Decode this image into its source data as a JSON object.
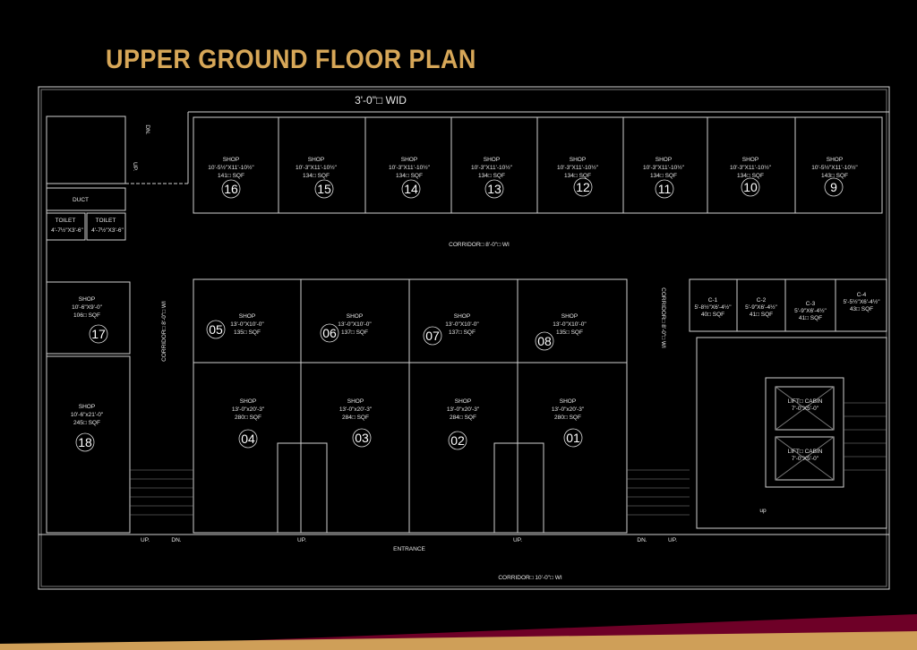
{
  "title": "UPPER GROUND FLOOR PLAN",
  "colors": {
    "background": "#000000",
    "title": "#d7a758",
    "stripe_maroon": "#6e0027",
    "stripe_gold": "#cf9f58",
    "lines": "#cfcfcf"
  },
  "labels": {
    "top_passage": "3'-0\"□ WID",
    "corridor_top": "CORRIDOR□ 8'-0\"□ WI",
    "corridor_left": "CORRIDOR□ 8'-0\"□ WI",
    "corridor_right": "CORRIDOR□ 8'-0\"□ WI",
    "corridor_bottom": "CORRIDOR□ 10'-0\"□ WI",
    "entrance": "ENTRANCE",
    "duct": "DUCT",
    "stair_dn": "DN.",
    "stair_up": "UP.",
    "lift_up": "up",
    "bottom_marks": [
      "UP.",
      "DN.",
      "UP.",
      "UP.",
      "DN.",
      "UP."
    ]
  },
  "toilets": [
    {
      "name": "TOILET",
      "size": "4'-7½\"X3'-6\""
    },
    {
      "name": "TOILET",
      "size": "4'-7½\"X3'-6\""
    }
  ],
  "shops": [
    {
      "no": "16",
      "type": "SHOP",
      "size": "10'-5½\"X11'-10½\"",
      "area": "141□ SQF"
    },
    {
      "no": "15",
      "type": "SHOP",
      "size": "10'-3\"X11'-10½\"",
      "area": "134□ SQF"
    },
    {
      "no": "14",
      "type": "SHOP",
      "size": "10'-3\"X11'-10½\"",
      "area": "134□ SQF"
    },
    {
      "no": "13",
      "type": "SHOP",
      "size": "10'-3\"X11'-10½\"",
      "area": "134□ SQF"
    },
    {
      "no": "12",
      "type": "SHOP",
      "size": "10'-3\"X11'-10½\"",
      "area": "134□ SQF"
    },
    {
      "no": "11",
      "type": "SHOP",
      "size": "10'-3\"X11'-10½\"",
      "area": "134□ SQF"
    },
    {
      "no": "10",
      "type": "SHOP",
      "size": "10'-3\"X11'-10½\"",
      "area": "134□ SQF"
    },
    {
      "no": "9",
      "type": "SHOP",
      "size": "10'-5½\"X11'-10½\"",
      "area": "143□ SQF"
    },
    {
      "no": "17",
      "type": "SHOP",
      "size": "10'-6\"X9'-0\"",
      "area": "106□ SQF"
    },
    {
      "no": "18",
      "type": "SHOP",
      "size": "10'-6\"x21'-0\"",
      "area": "245□ SQF"
    },
    {
      "no": "05",
      "type": "SHOP",
      "size": "13'-0\"X10'-0\"",
      "area": "135□ SQF"
    },
    {
      "no": "06",
      "type": "SHOP",
      "size": "13'-0\"X10'-0\"",
      "area": "137□ SQF"
    },
    {
      "no": "07",
      "type": "SHOP",
      "size": "13'-0\"X10'-0\"",
      "area": "137□ SQF"
    },
    {
      "no": "08",
      "type": "SHOP",
      "size": "13'-0\"X10'-0\"",
      "area": "135□ SQF"
    },
    {
      "no": "04",
      "type": "SHOP",
      "size": "13'-0\"x20'-3\"",
      "area": "280□ SQF"
    },
    {
      "no": "03",
      "type": "SHOP",
      "size": "13'-0\"x20'-3\"",
      "area": "284□ SQF"
    },
    {
      "no": "02",
      "type": "SHOP",
      "size": "13'-0\"x20'-3\"",
      "area": "284□ SQF"
    },
    {
      "no": "01",
      "type": "SHOP",
      "size": "13'-0\"x20'-3\"",
      "area": "280□ SQF"
    }
  ],
  "cabins": [
    {
      "name": "C-1",
      "size": "5'-8½\"X6'-4½\"",
      "area": "40□ SQF"
    },
    {
      "name": "C-2",
      "size": "5'-9\"X6'-4½\"",
      "area": "41□ SQF"
    },
    {
      "name": "C-3",
      "size": "5'-9\"X6'-4½\"",
      "area": "41□ SQF"
    },
    {
      "name": "C-4",
      "size": "5'-5½\"X6'-4½\"",
      "area": "43□ SQF"
    }
  ],
  "lifts": [
    {
      "name": "LIFT□ CABIN",
      "size": "7'-0\"X5'-0\""
    },
    {
      "name": "LIFT□ CABIN",
      "size": "7'-0\"X5'-0\""
    }
  ]
}
